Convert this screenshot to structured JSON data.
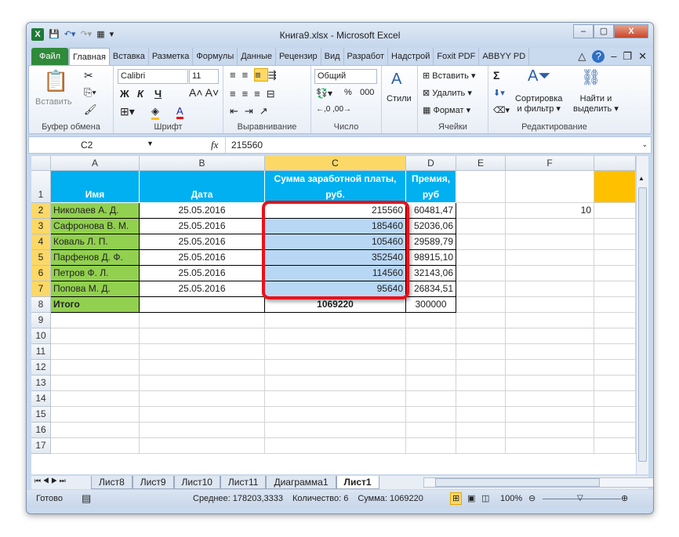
{
  "window": {
    "title": "Книга9.xlsx  -  Microsoft Excel"
  },
  "tabs": [
    "Файл",
    "Главная",
    "Вставка",
    "Разметка",
    "Формулы",
    "Данные",
    "Рецензир",
    "Вид",
    "Разработ",
    "Надстрой",
    "Foxit PDF",
    "ABBYY PD"
  ],
  "ribbon": {
    "clipboard": {
      "paste": "Вставить",
      "label": "Буфер обмена"
    },
    "font": {
      "name": "Calibri",
      "size": "11",
      "bold": "Ж",
      "italic": "К",
      "underline": "Ч",
      "label": "Шрифт"
    },
    "alignment": {
      "label": "Выравнивание"
    },
    "number": {
      "format": "Общий",
      "percent": "%",
      "thousands": "000",
      "label": "Число"
    },
    "styles": {
      "label": "Стили"
    },
    "cells": {
      "insert": "Вставить",
      "delete": "Удалить",
      "format": "Формат",
      "label": "Ячейки"
    },
    "editing": {
      "sort": "Сортировка",
      "sort2": "и фильтр",
      "find": "Найти и",
      "find2": "выделить",
      "label": "Редактирование",
      "sigma": "Σ"
    }
  },
  "formula_bar": {
    "name_box": "C2",
    "fx": "fx",
    "value": "215560"
  },
  "columns": [
    "A",
    "B",
    "C",
    "D",
    "E",
    "F"
  ],
  "header_row": {
    "a": "Имя",
    "b": "Дата",
    "c1": "Сумма заработной платы,",
    "c2": "руб.",
    "d1": "Премия,",
    "d2": "руб"
  },
  "rows": [
    {
      "n": "2",
      "a": "Николаев А. Д.",
      "b": "25.05.2016",
      "c": "215560",
      "d": "60481,47",
      "f": "10"
    },
    {
      "n": "3",
      "a": "Сафронова В. М.",
      "b": "25.05.2016",
      "c": "185460",
      "d": "52036,06",
      "f": ""
    },
    {
      "n": "4",
      "a": "Коваль Л. П.",
      "b": "25.05.2016",
      "c": "105460",
      "d": "29589,79",
      "f": ""
    },
    {
      "n": "5",
      "a": "Парфенов Д. Ф.",
      "b": "25.05.2016",
      "c": "352540",
      "d": "98915,10",
      "f": ""
    },
    {
      "n": "6",
      "a": "Петров Ф. Л.",
      "b": "25.05.2016",
      "c": "114560",
      "d": "32143,06",
      "f": ""
    },
    {
      "n": "7",
      "a": "Попова М. Д.",
      "b": "25.05.2016",
      "c": "95640",
      "d": "26834,51",
      "f": ""
    },
    {
      "n": "8",
      "a": "Итого",
      "b": "",
      "c": "1069220",
      "d": "300000",
      "f": ""
    }
  ],
  "empty_rows": [
    "9",
    "10",
    "11",
    "12",
    "13",
    "14",
    "15",
    "16",
    "17"
  ],
  "sheets": [
    "Лист8",
    "Лист9",
    "Лист10",
    "Лист11",
    "Диаграмма1",
    "Лист1"
  ],
  "active_sheet": "Лист1",
  "status": {
    "ready": "Готово",
    "average": "Среднее: 178203,3333",
    "count": "Количество: 6",
    "sum": "Сумма: 1069220",
    "zoom": "100%"
  },
  "colors": {
    "header_fill": "#00b0f0",
    "name_fill": "#92d050",
    "selection": "#b8d7f5",
    "highlight": "#e8121a",
    "g1_fill": "#ffc000"
  }
}
